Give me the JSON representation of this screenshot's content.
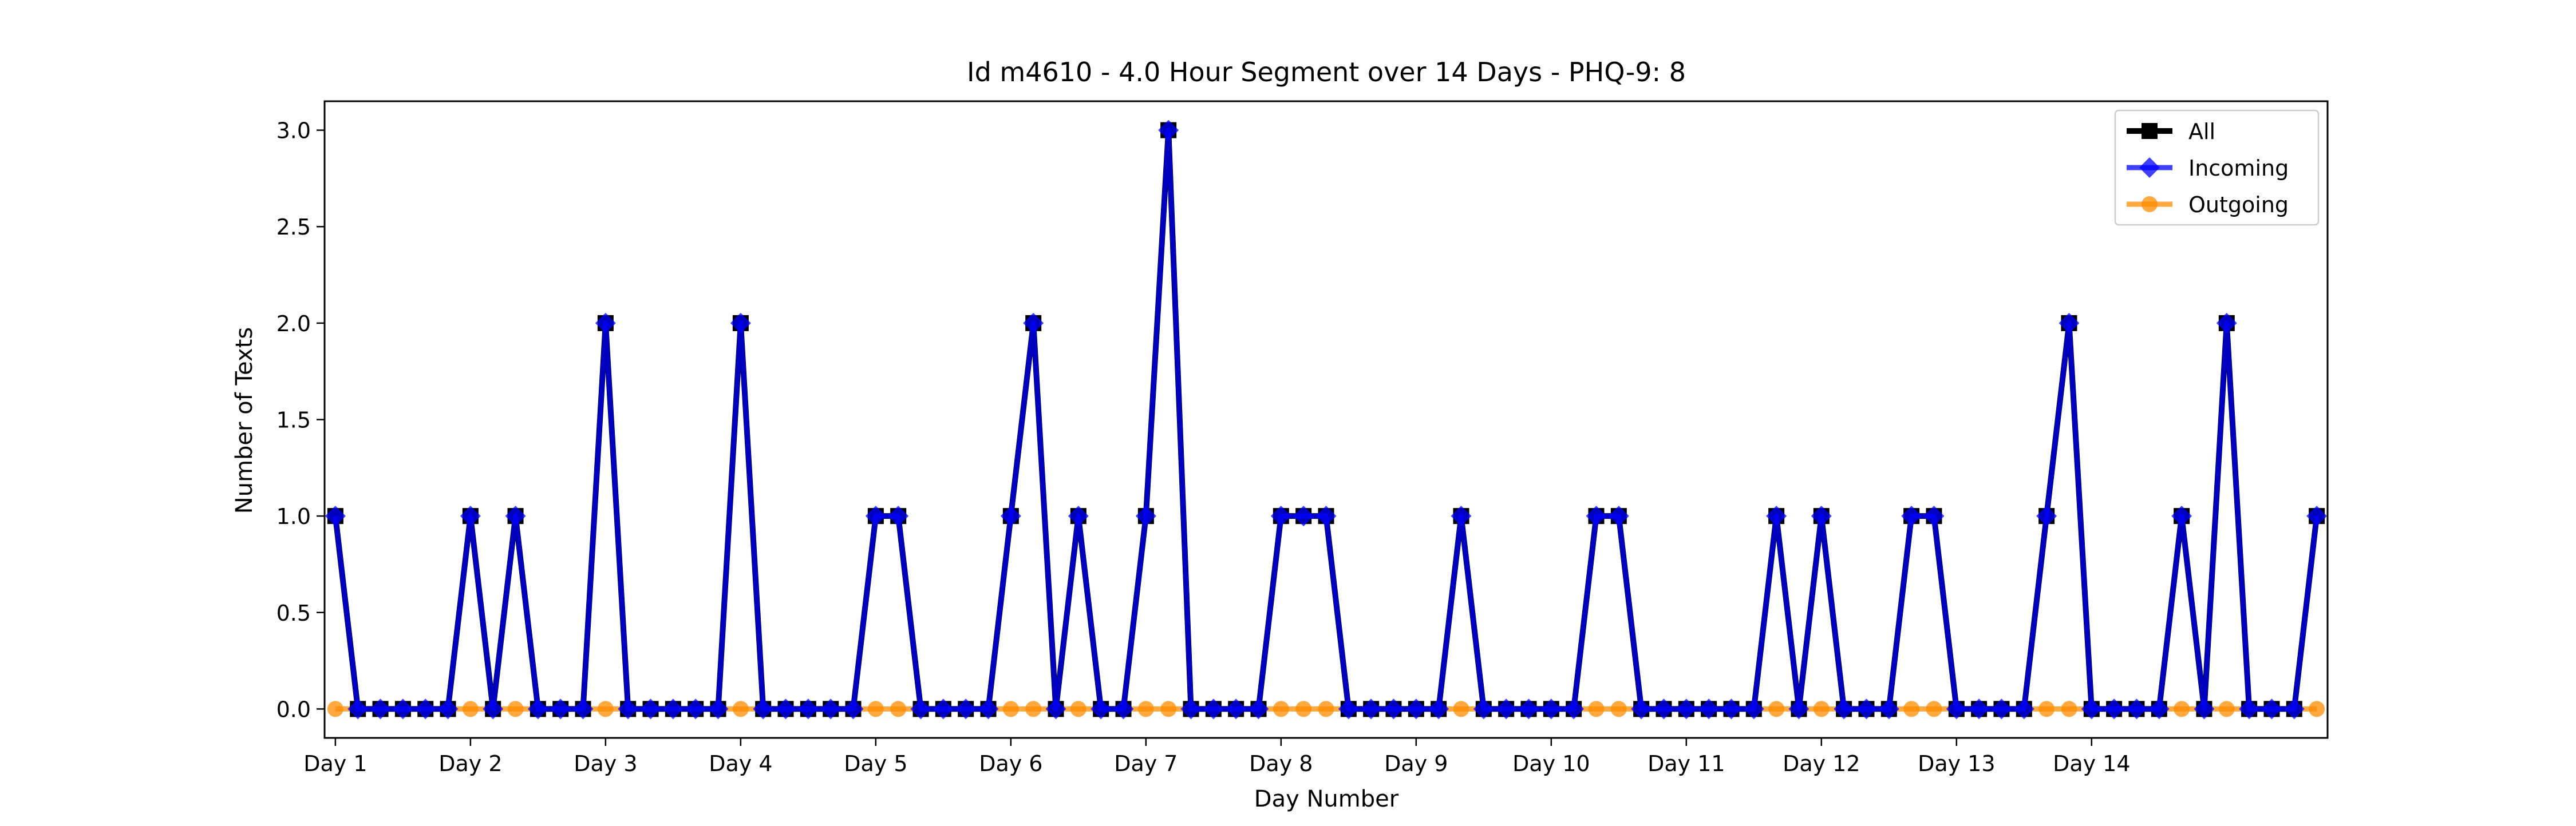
{
  "chart_data": {
    "type": "line",
    "title": "Id m4610 - 4.0 Hour Segment over 14 Days - PHQ-9: 8",
    "xlabel": "Day Number",
    "ylabel": "Number of Texts",
    "ylim": [
      -0.15,
      3.15
    ],
    "yticks": [
      "0.0",
      "0.5",
      "1.0",
      "1.5",
      "2.0",
      "2.5",
      "3.0"
    ],
    "ytick_values": [
      0,
      0.5,
      1,
      1.5,
      2,
      2.5,
      3
    ],
    "xticks": [
      "Day 1",
      "Day 2",
      "Day 3",
      "Day 4",
      "Day 5",
      "Day 6",
      "Day 7",
      "Day 8",
      "Day 9",
      "Day 10",
      "Day 11",
      "Day 12",
      "Day 13",
      "Day 14"
    ],
    "grid": false,
    "legend_position": "top-right",
    "series": [
      {
        "name": "All",
        "color": "#000000",
        "marker": "square",
        "values": [
          1,
          0,
          0,
          0,
          0,
          0,
          1,
          0,
          1,
          0,
          0,
          0,
          2,
          0,
          0,
          0,
          0,
          0,
          2,
          0,
          0,
          0,
          0,
          0,
          1,
          1,
          0,
          0,
          0,
          0,
          1,
          2,
          0,
          1,
          0,
          0,
          1,
          3,
          0,
          0,
          0,
          0,
          1,
          1,
          1,
          0,
          0,
          0,
          0,
          0,
          1,
          0,
          0,
          0,
          0,
          0,
          1,
          1,
          0,
          0,
          0,
          0,
          0,
          0,
          1,
          0,
          1,
          0,
          0,
          0,
          1,
          1,
          0,
          0,
          0,
          0,
          1,
          2,
          0,
          0,
          0,
          0,
          1,
          0,
          2,
          0,
          0,
          0,
          1
        ]
      },
      {
        "name": "Incoming",
        "color": "#0000ff",
        "marker": "diamond",
        "values": [
          1,
          0,
          0,
          0,
          0,
          0,
          1,
          0,
          1,
          0,
          0,
          0,
          2,
          0,
          0,
          0,
          0,
          0,
          2,
          0,
          0,
          0,
          0,
          0,
          1,
          1,
          0,
          0,
          0,
          0,
          1,
          2,
          0,
          1,
          0,
          0,
          1,
          3,
          0,
          0,
          0,
          0,
          1,
          1,
          1,
          0,
          0,
          0,
          0,
          0,
          1,
          0,
          0,
          0,
          0,
          0,
          1,
          1,
          0,
          0,
          0,
          0,
          0,
          0,
          1,
          0,
          1,
          0,
          0,
          0,
          1,
          1,
          0,
          0,
          0,
          0,
          1,
          2,
          0,
          0,
          0,
          0,
          1,
          0,
          2,
          0,
          0,
          0,
          1
        ]
      },
      {
        "name": "Outgoing",
        "color": "#ff8c00",
        "marker": "circle",
        "values": [
          0,
          0,
          0,
          0,
          0,
          0,
          0,
          0,
          0,
          0,
          0,
          0,
          0,
          0,
          0,
          0,
          0,
          0,
          0,
          0,
          0,
          0,
          0,
          0,
          0,
          0,
          0,
          0,
          0,
          0,
          0,
          0,
          0,
          0,
          0,
          0,
          0,
          0,
          0,
          0,
          0,
          0,
          0,
          0,
          0,
          0,
          0,
          0,
          0,
          0,
          0,
          0,
          0,
          0,
          0,
          0,
          0,
          0,
          0,
          0,
          0,
          0,
          0,
          0,
          0,
          0,
          0,
          0,
          0,
          0,
          0,
          0,
          0,
          0,
          0,
          0,
          0,
          0,
          0,
          0,
          0,
          0,
          0,
          0,
          0,
          0,
          0,
          0,
          0
        ]
      }
    ]
  }
}
